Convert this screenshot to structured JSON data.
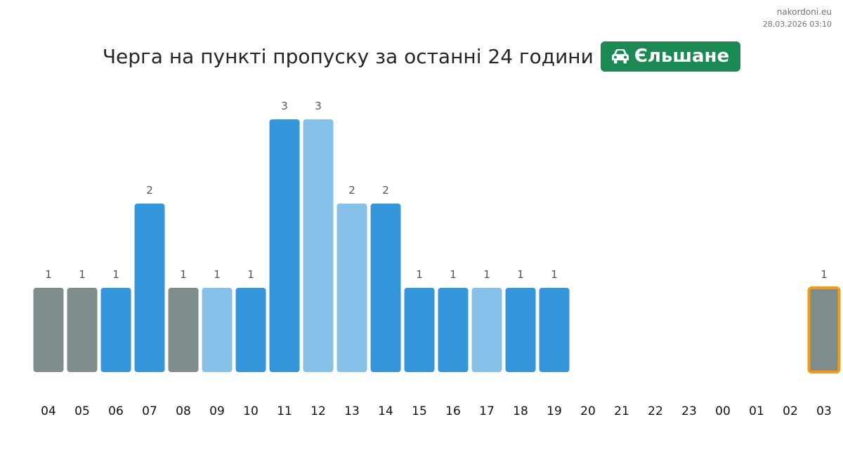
{
  "header": {
    "site": "nakordoni.eu",
    "timestamp": "28.03.2026 03:10",
    "title": "Черга на пункті пропуску за останні 24 години",
    "badge_label": "Єльшане",
    "badge_icon": "car-icon",
    "badge_color": "#1a8a52"
  },
  "colors": {
    "dark_blue": "#3597db",
    "light_blue": "#85c0e9",
    "gray": "#7f8c8c",
    "highlight_border": "#f39c12",
    "label_text": "#555555",
    "tick_text": "#111111"
  },
  "chart_data": {
    "type": "bar",
    "categories": [
      "04",
      "05",
      "06",
      "07",
      "08",
      "09",
      "10",
      "11",
      "12",
      "13",
      "14",
      "15",
      "16",
      "17",
      "18",
      "19",
      "20",
      "21",
      "22",
      "23",
      "00",
      "01",
      "02",
      "03"
    ],
    "values": [
      1,
      1,
      1,
      2,
      1,
      1,
      1,
      3,
      3,
      2,
      2,
      1,
      1,
      1,
      1,
      1,
      null,
      null,
      null,
      null,
      null,
      null,
      null,
      1
    ],
    "bar_colors": [
      "gray",
      "gray",
      "dark_blue",
      "dark_blue",
      "gray",
      "light_blue",
      "dark_blue",
      "dark_blue",
      "light_blue",
      "light_blue",
      "dark_blue",
      "dark_blue",
      "dark_blue",
      "light_blue",
      "dark_blue",
      "dark_blue",
      null,
      null,
      null,
      null,
      null,
      null,
      null,
      "gray"
    ],
    "highlighted_category": "03",
    "title": "Черга на пункті пропуску за останні 24 години",
    "xlabel": "",
    "ylabel": "",
    "ylim": [
      0,
      3
    ],
    "grid": false,
    "legend": false
  }
}
